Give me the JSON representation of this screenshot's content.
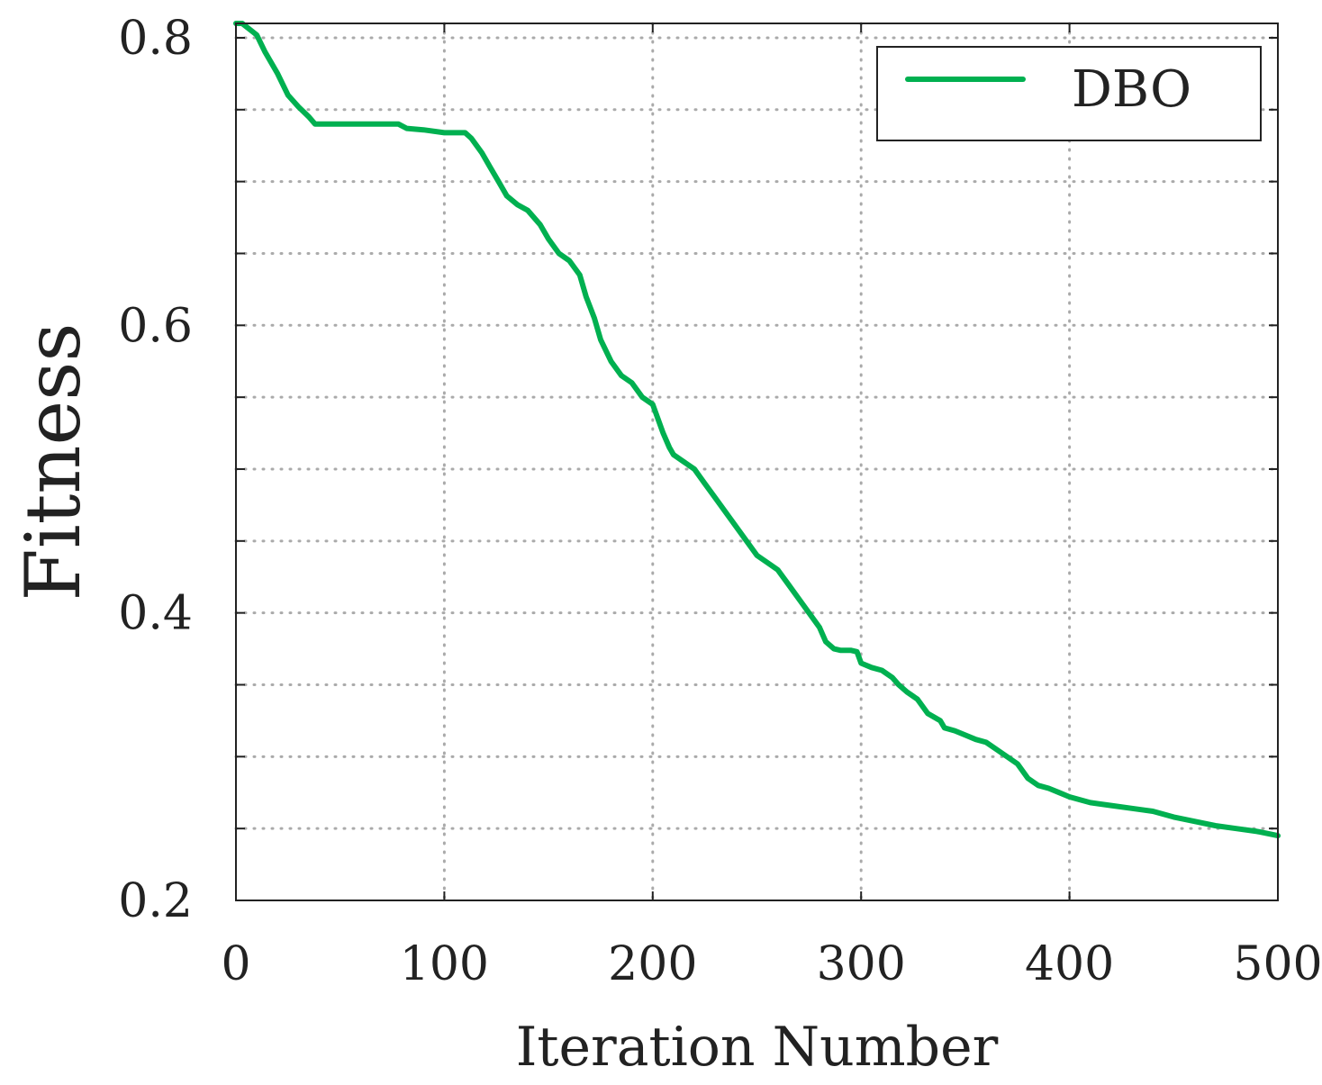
{
  "chart_data": {
    "type": "line",
    "title": "",
    "xlabel": "Iteration Number",
    "ylabel": "Fitness",
    "xlim": [
      0,
      500
    ],
    "ylim": [
      0.2,
      0.81
    ],
    "xticks": [
      0,
      100,
      200,
      300,
      400,
      500
    ],
    "xtick_labels": [
      "0",
      "100",
      "200",
      "300",
      "400",
      "500"
    ],
    "yticks": [
      0.2,
      0.4,
      0.6,
      0.8
    ],
    "ytick_labels": [
      "0.2",
      "0.4",
      "0.6",
      "0.8"
    ],
    "grid": true,
    "grid_style": "dotted",
    "legend_position": "top-right",
    "series": [
      {
        "name": "DBO",
        "color": "#00b050",
        "x": [
          0,
          3,
          10,
          14,
          20,
          25,
          30,
          35,
          38,
          50,
          60,
          70,
          78,
          82,
          90,
          100,
          110,
          113,
          118,
          122,
          126,
          130,
          135,
          140,
          146,
          150,
          155,
          160,
          165,
          168,
          172,
          175,
          180,
          185,
          190,
          195,
          200,
          205,
          208,
          210,
          215,
          220,
          225,
          230,
          235,
          240,
          245,
          250,
          255,
          260,
          265,
          270,
          275,
          280,
          283,
          287,
          290,
          295,
          298,
          300,
          305,
          310,
          315,
          318,
          322,
          327,
          332,
          338,
          340,
          345,
          350,
          355,
          360,
          365,
          370,
          375,
          380,
          385,
          390,
          395,
          400,
          410,
          420,
          430,
          440,
          450,
          460,
          470,
          480,
          490,
          500
        ],
        "y": [
          0.81,
          0.81,
          0.802,
          0.79,
          0.775,
          0.76,
          0.752,
          0.745,
          0.74,
          0.74,
          0.74,
          0.74,
          0.74,
          0.737,
          0.736,
          0.734,
          0.734,
          0.73,
          0.72,
          0.71,
          0.7,
          0.69,
          0.684,
          0.68,
          0.67,
          0.66,
          0.65,
          0.645,
          0.635,
          0.62,
          0.605,
          0.59,
          0.575,
          0.565,
          0.56,
          0.55,
          0.545,
          0.525,
          0.515,
          0.51,
          0.505,
          0.5,
          0.49,
          0.48,
          0.47,
          0.46,
          0.45,
          0.44,
          0.435,
          0.43,
          0.42,
          0.41,
          0.4,
          0.39,
          0.38,
          0.375,
          0.374,
          0.374,
          0.373,
          0.365,
          0.362,
          0.36,
          0.355,
          0.35,
          0.345,
          0.34,
          0.33,
          0.325,
          0.32,
          0.318,
          0.315,
          0.312,
          0.31,
          0.305,
          0.3,
          0.295,
          0.285,
          0.28,
          0.278,
          0.275,
          0.272,
          0.268,
          0.266,
          0.264,
          0.262,
          0.258,
          0.255,
          0.252,
          0.25,
          0.248,
          0.245
        ]
      }
    ]
  }
}
